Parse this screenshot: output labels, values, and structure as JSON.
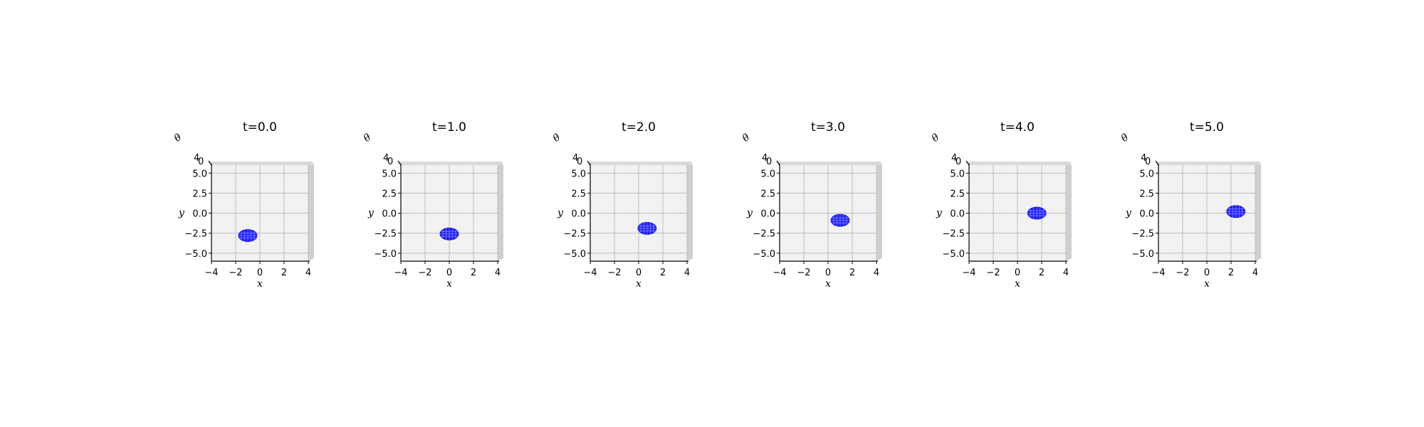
{
  "chart_data": [
    {
      "type": "surface",
      "title": "t=0.0",
      "xlabel": "x",
      "ylabel": "y",
      "zlabel": "θ",
      "x_ticks": [
        "−4",
        "−2",
        "0",
        "2",
        "4"
      ],
      "y_ticks": [
        "5.0",
        "2.5",
        "0.0",
        "−2.5",
        "−5.0"
      ],
      "z_ticks": [
        "4",
        "0"
      ],
      "xlim": [
        -4,
        4
      ],
      "ylim": [
        -6,
        6
      ],
      "grid": true,
      "blob_center": [
        -1.0,
        -2.8
      ],
      "blob_color": "#1f1fff"
    },
    {
      "type": "surface",
      "title": "t=1.0",
      "xlabel": "x",
      "ylabel": "y",
      "zlabel": "θ",
      "x_ticks": [
        "−4",
        "−2",
        "0",
        "2",
        "4"
      ],
      "y_ticks": [
        "5.0",
        "2.5",
        "0.0",
        "−2.5",
        "−5.0"
      ],
      "z_ticks": [
        "4",
        "0"
      ],
      "xlim": [
        -4,
        4
      ],
      "ylim": [
        -6,
        6
      ],
      "grid": true,
      "blob_center": [
        0.0,
        -2.6
      ],
      "blob_color": "#1f1fff"
    },
    {
      "type": "surface",
      "title": "t=2.0",
      "xlabel": "x",
      "ylabel": "y",
      "zlabel": "θ",
      "x_ticks": [
        "−4",
        "−2",
        "0",
        "2",
        "4"
      ],
      "y_ticks": [
        "5.0",
        "2.5",
        "0.0",
        "−2.5",
        "−5.0"
      ],
      "z_ticks": [
        "4",
        "0"
      ],
      "xlim": [
        -4,
        4
      ],
      "ylim": [
        -6,
        6
      ],
      "grid": true,
      "blob_center": [
        0.7,
        -1.9
      ],
      "blob_color": "#1f1fff"
    },
    {
      "type": "surface",
      "title": "t=3.0",
      "xlabel": "x",
      "ylabel": "y",
      "zlabel": "θ",
      "x_ticks": [
        "−4",
        "−2",
        "0",
        "2",
        "4"
      ],
      "y_ticks": [
        "5.0",
        "2.5",
        "0.0",
        "−2.5",
        "−5.0"
      ],
      "z_ticks": [
        "4",
        "0"
      ],
      "xlim": [
        -4,
        4
      ],
      "ylim": [
        -6,
        6
      ],
      "grid": true,
      "blob_center": [
        1.0,
        -0.9
      ],
      "blob_color": "#1f1fff"
    },
    {
      "type": "surface",
      "title": "t=4.0",
      "xlabel": "x",
      "ylabel": "y",
      "zlabel": "θ",
      "x_ticks": [
        "−4",
        "−2",
        "0",
        "2",
        "4"
      ],
      "y_ticks": [
        "5.0",
        "2.5",
        "0.0",
        "−2.5",
        "−5.0"
      ],
      "z_ticks": [
        "4",
        "0"
      ],
      "xlim": [
        -4,
        4
      ],
      "ylim": [
        -6,
        6
      ],
      "grid": true,
      "blob_center": [
        1.6,
        0.0
      ],
      "blob_color": "#1f1fff"
    },
    {
      "type": "surface",
      "title": "t=5.0",
      "xlabel": "x",
      "ylabel": "y",
      "zlabel": "θ",
      "x_ticks": [
        "−4",
        "−2",
        "0",
        "2",
        "4"
      ],
      "y_ticks": [
        "5.0",
        "2.5",
        "0.0",
        "−2.5",
        "−5.0"
      ],
      "z_ticks": [
        "4",
        "0"
      ],
      "xlim": [
        -4,
        4
      ],
      "ylim": [
        -6,
        6
      ],
      "grid": true,
      "blob_center": [
        2.4,
        0.2
      ],
      "blob_color": "#1f1fff"
    }
  ]
}
